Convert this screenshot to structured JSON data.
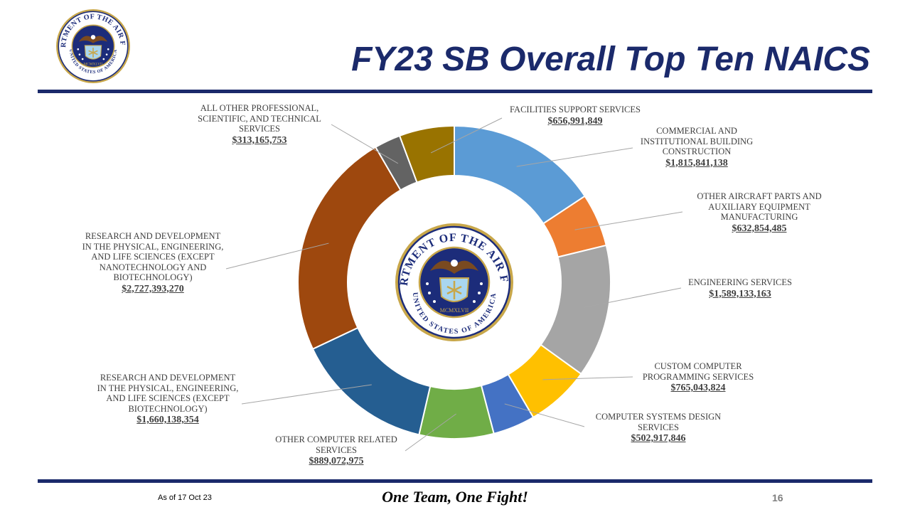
{
  "header": {
    "title": "FY23 SB Overall Top Ten NAICS"
  },
  "footer": {
    "date_text": "As of 17 Oct 23",
    "motto": "One Team, One Fight!",
    "page_number": "16"
  },
  "seal": {
    "outer_text_top": "DEPARTMENT OF THE AIR FORCE",
    "outer_text_bottom": "UNITED STATES OF AMERICA",
    "year_text": "MCMXLVII"
  },
  "colors": {
    "title_blue": "#1b2a6b",
    "rule_blue": "#1b2a6b",
    "seal_blue": "#1c2c7a",
    "seal_gold": "#c8a74a"
  },
  "chart_data": {
    "type": "pie",
    "variant": "doughnut",
    "title": "",
    "slices": [
      {
        "label": "COMMERCIAL AND INSTITUTIONAL BUILDING CONSTRUCTION",
        "value_text": "$1,815,841,138",
        "value": 1815841138,
        "color": "#5b9bd5"
      },
      {
        "label": "OTHER AIRCRAFT PARTS AND AUXILIARY EQUIPMENT MANUFACTURING",
        "value_text": "$632,854,485",
        "value": 632854485,
        "color": "#ed7d31"
      },
      {
        "label": "ENGINEERING SERVICES",
        "value_text": "$1,589,133,163",
        "value": 1589133163,
        "color": "#a5a5a5"
      },
      {
        "label": "CUSTOM COMPUTER PROGRAMMING SERVICES",
        "value_text": "$765,043,824",
        "value": 765043824,
        "color": "#ffc000"
      },
      {
        "label": "COMPUTER SYSTEMS DESIGN SERVICES",
        "value_text": "$502,917,846",
        "value": 502917846,
        "color": "#4472c4"
      },
      {
        "label": "OTHER COMPUTER RELATED SERVICES",
        "value_text": "$889,072,975",
        "value": 889072975,
        "color": "#70ad47"
      },
      {
        "label": "RESEARCH AND DEVELOPMENT IN THE PHYSICAL, ENGINEERING, AND LIFE SCIENCES (EXCEPT BIOTECHNOLOGY)",
        "value_text": "$1,660,138,354",
        "value": 1660138354,
        "color": "#255e91"
      },
      {
        "label": "RESEARCH AND DEVELOPMENT IN THE PHYSICAL, ENGINEERING, AND LIFE SCIENCES (EXCEPT NANOTECHNOLOGY AND BIOTECHNOLOGY)",
        "value_text": "$2,727,393,270",
        "value": 2727393270,
        "color": "#9e480e"
      },
      {
        "label": "ALL OTHER PROFESSIONAL, SCIENTIFIC, AND TECHNICAL SERVICES",
        "value_text": "$313,165,753",
        "value": 313165753,
        "color": "#636363"
      },
      {
        "label": "FACILITIES SUPPORT SERVICES",
        "value_text": "$656,991,849",
        "value": 656991849,
        "color": "#997300"
      }
    ]
  }
}
